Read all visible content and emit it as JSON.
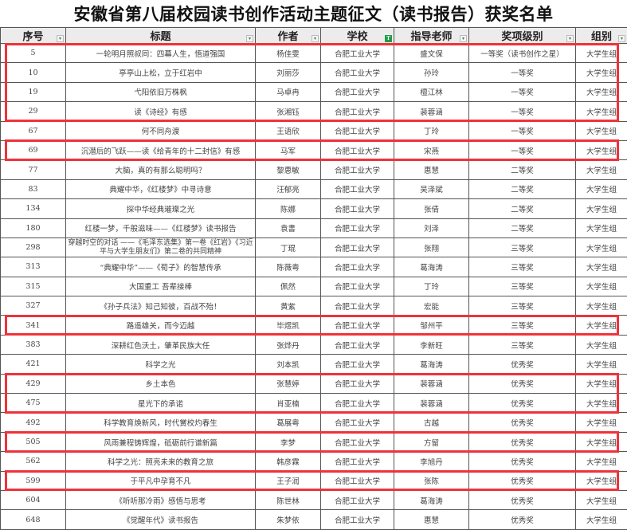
{
  "title": "安徽省第八届校园读书创作活动主题征文（读书报告）获奖名单",
  "highlight_color": "#f0323a",
  "columns": [
    {
      "label": "序号",
      "filter": "dropdown"
    },
    {
      "label": "标题",
      "filter": "dropdown"
    },
    {
      "label": "作者",
      "filter": "dropdown"
    },
    {
      "label": "学校",
      "filter": "active-filter"
    },
    {
      "label": "指导老师",
      "filter": "dropdown"
    },
    {
      "label": "奖项级别",
      "filter": "dropdown"
    },
    {
      "label": "组别",
      "filter": "dropdown"
    }
  ],
  "rows": [
    {
      "no": "5",
      "title": "一轮明月照叔同：四幕人生，悟道强国",
      "author": "杨佳雯",
      "school": "合肥工业大学",
      "teacher": "盛文保",
      "award": "一等奖（读书创作之星）",
      "group": "大学生组",
      "highlighted": true
    },
    {
      "no": "10",
      "title": "亭亭山上松，立于红岩中",
      "author": "刘丽莎",
      "school": "合肥工业大学",
      "teacher": "孙玲",
      "award": "一等奖",
      "group": "大学生组",
      "highlighted": true
    },
    {
      "no": "19",
      "title": "弋阳依旧万株枫",
      "author": "马卓冉",
      "school": "合肥工业大学",
      "teacher": "檀江林",
      "award": "一等奖",
      "group": "大学生组",
      "highlighted": true
    },
    {
      "no": "29",
      "title": "读《诗经》有感",
      "author": "张湘钰",
      "school": "合肥工业大学",
      "teacher": "裴蓉涵",
      "award": "一等奖",
      "group": "大学生组",
      "highlighted": true
    },
    {
      "no": "67",
      "title": "何不同舟渡",
      "author": "王语欣",
      "school": "合肥工业大学",
      "teacher": "丁玲",
      "award": "一等奖",
      "group": "大学生组",
      "highlighted": false
    },
    {
      "no": "69",
      "title": "沉潜后的飞跃——读《给青年的十二封信》有感",
      "author": "马军",
      "school": "合肥工业大学",
      "teacher": "宋燕",
      "award": "一等奖",
      "group": "大学生组",
      "highlighted": true
    },
    {
      "no": "77",
      "title": "大脑，真的有那么聪明吗？",
      "author": "黎惠敏",
      "school": "合肥工业大学",
      "teacher": "惠慧",
      "award": "二等奖",
      "group": "大学生组",
      "highlighted": false
    },
    {
      "no": "83",
      "title": "典耀中华，《红楼梦》中寻诗意",
      "author": "汪郁亮",
      "school": "合肥工业大学",
      "teacher": "吴泽斌",
      "award": "二等奖",
      "group": "大学生组",
      "highlighted": false
    },
    {
      "no": "134",
      "title": "探中华经典璀璨之光",
      "author": "陈娜",
      "school": "合肥工业大学",
      "teacher": "张倩",
      "award": "二等奖",
      "group": "大学生组",
      "highlighted": false
    },
    {
      "no": "180",
      "title": "红楼一梦，千般滋味——《红楼梦》读书报告",
      "author": "袁書",
      "school": "合肥工业大学",
      "teacher": "刘泽",
      "award": "二等奖",
      "group": "大学生组",
      "highlighted": false
    },
    {
      "no": "298",
      "title": "穿越时空的对话 ——《毛泽东选集》第一卷《红岩》《习近平与大学生朋友们》第二卷的共同精神",
      "author": "丁琨",
      "school": "合肥工业大学",
      "teacher": "张翔",
      "award": "三等奖",
      "group": "大学生组",
      "highlighted": false
    },
    {
      "no": "313",
      "title": "“典耀中华”——《荀子》的智慧传承",
      "author": "陈薇粤",
      "school": "合肥工业大学",
      "teacher": "葛海涛",
      "award": "三等奖",
      "group": "大学生组",
      "highlighted": false
    },
    {
      "no": "315",
      "title": "大国重工 吾辈接棒",
      "author": "佩然",
      "school": "合肥工业大学",
      "teacher": "丁玲",
      "award": "三等奖",
      "group": "大学生组",
      "highlighted": false
    },
    {
      "no": "327",
      "title": "《孙子兵法》知己知彼，百战不殆！",
      "author": "黄紫",
      "school": "合肥工业大学",
      "teacher": "宏能",
      "award": "三等奖",
      "group": "大学生组",
      "highlighted": false
    },
    {
      "no": "341",
      "title": "路遥雄关，而今迈越",
      "author": "毕煜凯",
      "school": "合肥工业大学",
      "teacher": "邹州平",
      "award": "三等奖",
      "group": "大学生组",
      "highlighted": true
    },
    {
      "no": "383",
      "title": "深耕红色沃土，肇革民族大任",
      "author": "张烨丹",
      "school": "合肥工业大学",
      "teacher": "李新旺",
      "award": "三等奖",
      "group": "大学生组",
      "highlighted": false
    },
    {
      "no": "421",
      "title": "科学之光",
      "author": "刘本凯",
      "school": "合肥工业大学",
      "teacher": "葛海涛",
      "award": "优秀奖",
      "group": "大学生组",
      "highlighted": false
    },
    {
      "no": "429",
      "title": "乡土本色",
      "author": "张慧婷",
      "school": "合肥工业大学",
      "teacher": "裴蓉涵",
      "award": "优秀奖",
      "group": "大学生组",
      "highlighted": true
    },
    {
      "no": "475",
      "title": "星光下的承诺",
      "author": "肖亚楠",
      "school": "合肥工业大学",
      "teacher": "裴蓉涵",
      "award": "优秀奖",
      "group": "大学生组",
      "highlighted": true
    },
    {
      "no": "492",
      "title": "科学教育焕新风，时代黉校灼春生",
      "author": "葛展粤",
      "school": "合肥工业大学",
      "teacher": "古越",
      "award": "优秀奖",
      "group": "大学生组",
      "highlighted": false
    },
    {
      "no": "505",
      "title": "风雨兼程铸辉煌，砥砺前行谱新篇",
      "author": "李梦",
      "school": "合肥工业大学",
      "teacher": "方留",
      "award": "优秀奖",
      "group": "大学生组",
      "highlighted": true
    },
    {
      "no": "562",
      "title": "科学之光：照亮未来的教育之旅",
      "author": "韩彦霖",
      "school": "合肥工业大学",
      "teacher": "李旭丹",
      "award": "优秀奖",
      "group": "大学生组",
      "highlighted": false
    },
    {
      "no": "599",
      "title": "于平凡中孕育不凡",
      "author": "王子润",
      "school": "合肥工业大学",
      "teacher": "张陈",
      "award": "优秀奖",
      "group": "大学生组",
      "highlighted": true
    },
    {
      "no": "604",
      "title": "《听听那冷雨》感悟与思考",
      "author": "陈世林",
      "school": "合肥工业大学",
      "teacher": "葛海涛",
      "award": "优秀奖",
      "group": "大学生组",
      "highlighted": false
    },
    {
      "no": "648",
      "title": "《觉醒年代》读书报告",
      "author": "朱梦依",
      "school": "合肥工业大学",
      "teacher": "惠慧",
      "award": "优秀奖",
      "group": "大学生组",
      "highlighted": false
    }
  ]
}
